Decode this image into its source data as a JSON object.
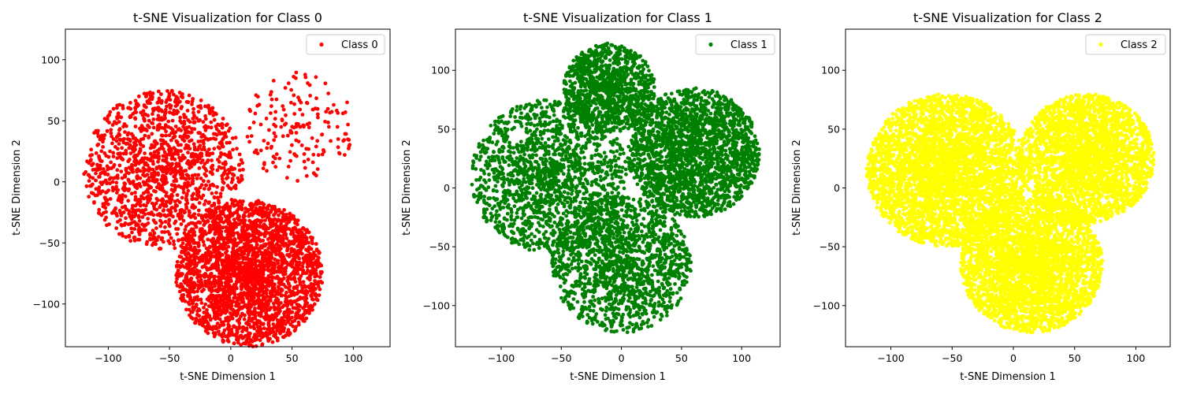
{
  "chart_data": [
    {
      "type": "scatter",
      "title": "t-SNE Visualization for Class 0",
      "xlabel": "t-SNE Dimension 1",
      "ylabel": "t-SNE Dimension 2",
      "xlim": [
        -135,
        130
      ],
      "ylim": [
        -135,
        125
      ],
      "xticks": [
        -100,
        -50,
        0,
        50,
        100
      ],
      "yticks": [
        -100,
        -50,
        0,
        50,
        100
      ],
      "xtick_labels": [
        "−100",
        "−50",
        "0",
        "50",
        "100"
      ],
      "ytick_labels": [
        "−100",
        "−50",
        "0",
        "50",
        "100"
      ],
      "legend": {
        "label": "Class 0",
        "position": "top-right"
      },
      "color": "#ff0000",
      "clusters": [
        {
          "center": [
            -55,
            10
          ],
          "radius": 65,
          "count": 1400
        },
        {
          "center": [
            15,
            -75
          ],
          "radius": 60,
          "count": 2600
        },
        {
          "center": [
            55,
            45
          ],
          "radius": 45,
          "count": 170
        }
      ]
    },
    {
      "type": "scatter",
      "title": "t-SNE Visualization for Class 1",
      "xlabel": "t-SNE Dimension 1",
      "ylabel": "t-SNE Dimension 2",
      "xlim": [
        -138,
        132
      ],
      "ylim": [
        -135,
        135
      ],
      "xticks": [
        -100,
        -50,
        0,
        50,
        100
      ],
      "yticks": [
        -100,
        -50,
        0,
        50,
        100
      ],
      "xtick_labels": [
        "−100",
        "−50",
        "0",
        "50",
        "100"
      ],
      "ytick_labels": [
        "−100",
        "−50",
        "0",
        "50",
        "100"
      ],
      "legend": {
        "label": "Class 1",
        "position": "top-right"
      },
      "color": "#008000",
      "clusters": [
        {
          "center": [
            -60,
            10
          ],
          "radius": 65,
          "count": 1600
        },
        {
          "center": [
            -10,
            85
          ],
          "radius": 38,
          "count": 1100
        },
        {
          "center": [
            60,
            30
          ],
          "radius": 55,
          "count": 2200
        },
        {
          "center": [
            0,
            -65
          ],
          "radius": 58,
          "count": 1500
        }
      ]
    },
    {
      "type": "scatter",
      "title": "t-SNE Visualization for Class 2",
      "xlabel": "t-SNE Dimension 1",
      "ylabel": "t-SNE Dimension 2",
      "xlim": [
        -137,
        128
      ],
      "ylim": [
        -135,
        135
      ],
      "xticks": [
        -100,
        -50,
        0,
        50,
        100
      ],
      "yticks": [
        -100,
        -50,
        0,
        50,
        100
      ],
      "xtick_labels": [
        "−100",
        "−50",
        "0",
        "50",
        "100"
      ],
      "ytick_labels": [
        "−100",
        "−50",
        "0",
        "50",
        "100"
      ],
      "legend": {
        "label": "Class 2",
        "position": "top-right"
      },
      "color": "#ffff00",
      "clusters": [
        {
          "center": [
            -55,
            15
          ],
          "radius": 65,
          "count": 3600
        },
        {
          "center": [
            60,
            25
          ],
          "radius": 55,
          "count": 2600
        },
        {
          "center": [
            15,
            -65
          ],
          "radius": 58,
          "count": 3000
        }
      ]
    }
  ]
}
